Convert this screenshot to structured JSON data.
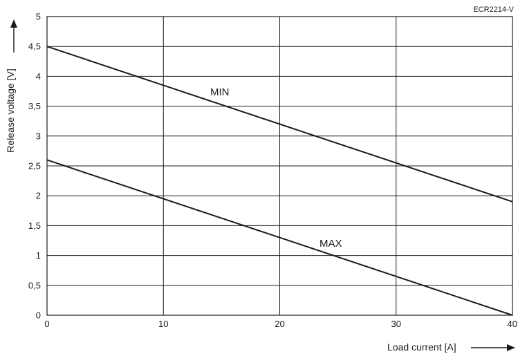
{
  "chart_data": {
    "type": "line",
    "figure_code": "ECR2214-V",
    "xlabel": "Load current [A]",
    "ylabel": "Release voltage [V]",
    "xlim": [
      0,
      40
    ],
    "ylim": [
      0,
      5
    ],
    "x_ticks": [
      "0",
      "10",
      "20",
      "30",
      "40"
    ],
    "y_ticks": [
      "0",
      "0,5",
      "1",
      "1,5",
      "2",
      "2,5",
      "3",
      "3,5",
      "4",
      "4,5",
      "5"
    ],
    "grid": true,
    "series": [
      {
        "name": "MIN",
        "x": [
          0,
          40
        ],
        "y": [
          4.5,
          1.9
        ]
      },
      {
        "name": "MAX",
        "x": [
          0,
          40
        ],
        "y": [
          2.6,
          0.0
        ]
      }
    ],
    "line_color": "#1a1a1a",
    "grid_color": "#1a1a1a"
  }
}
